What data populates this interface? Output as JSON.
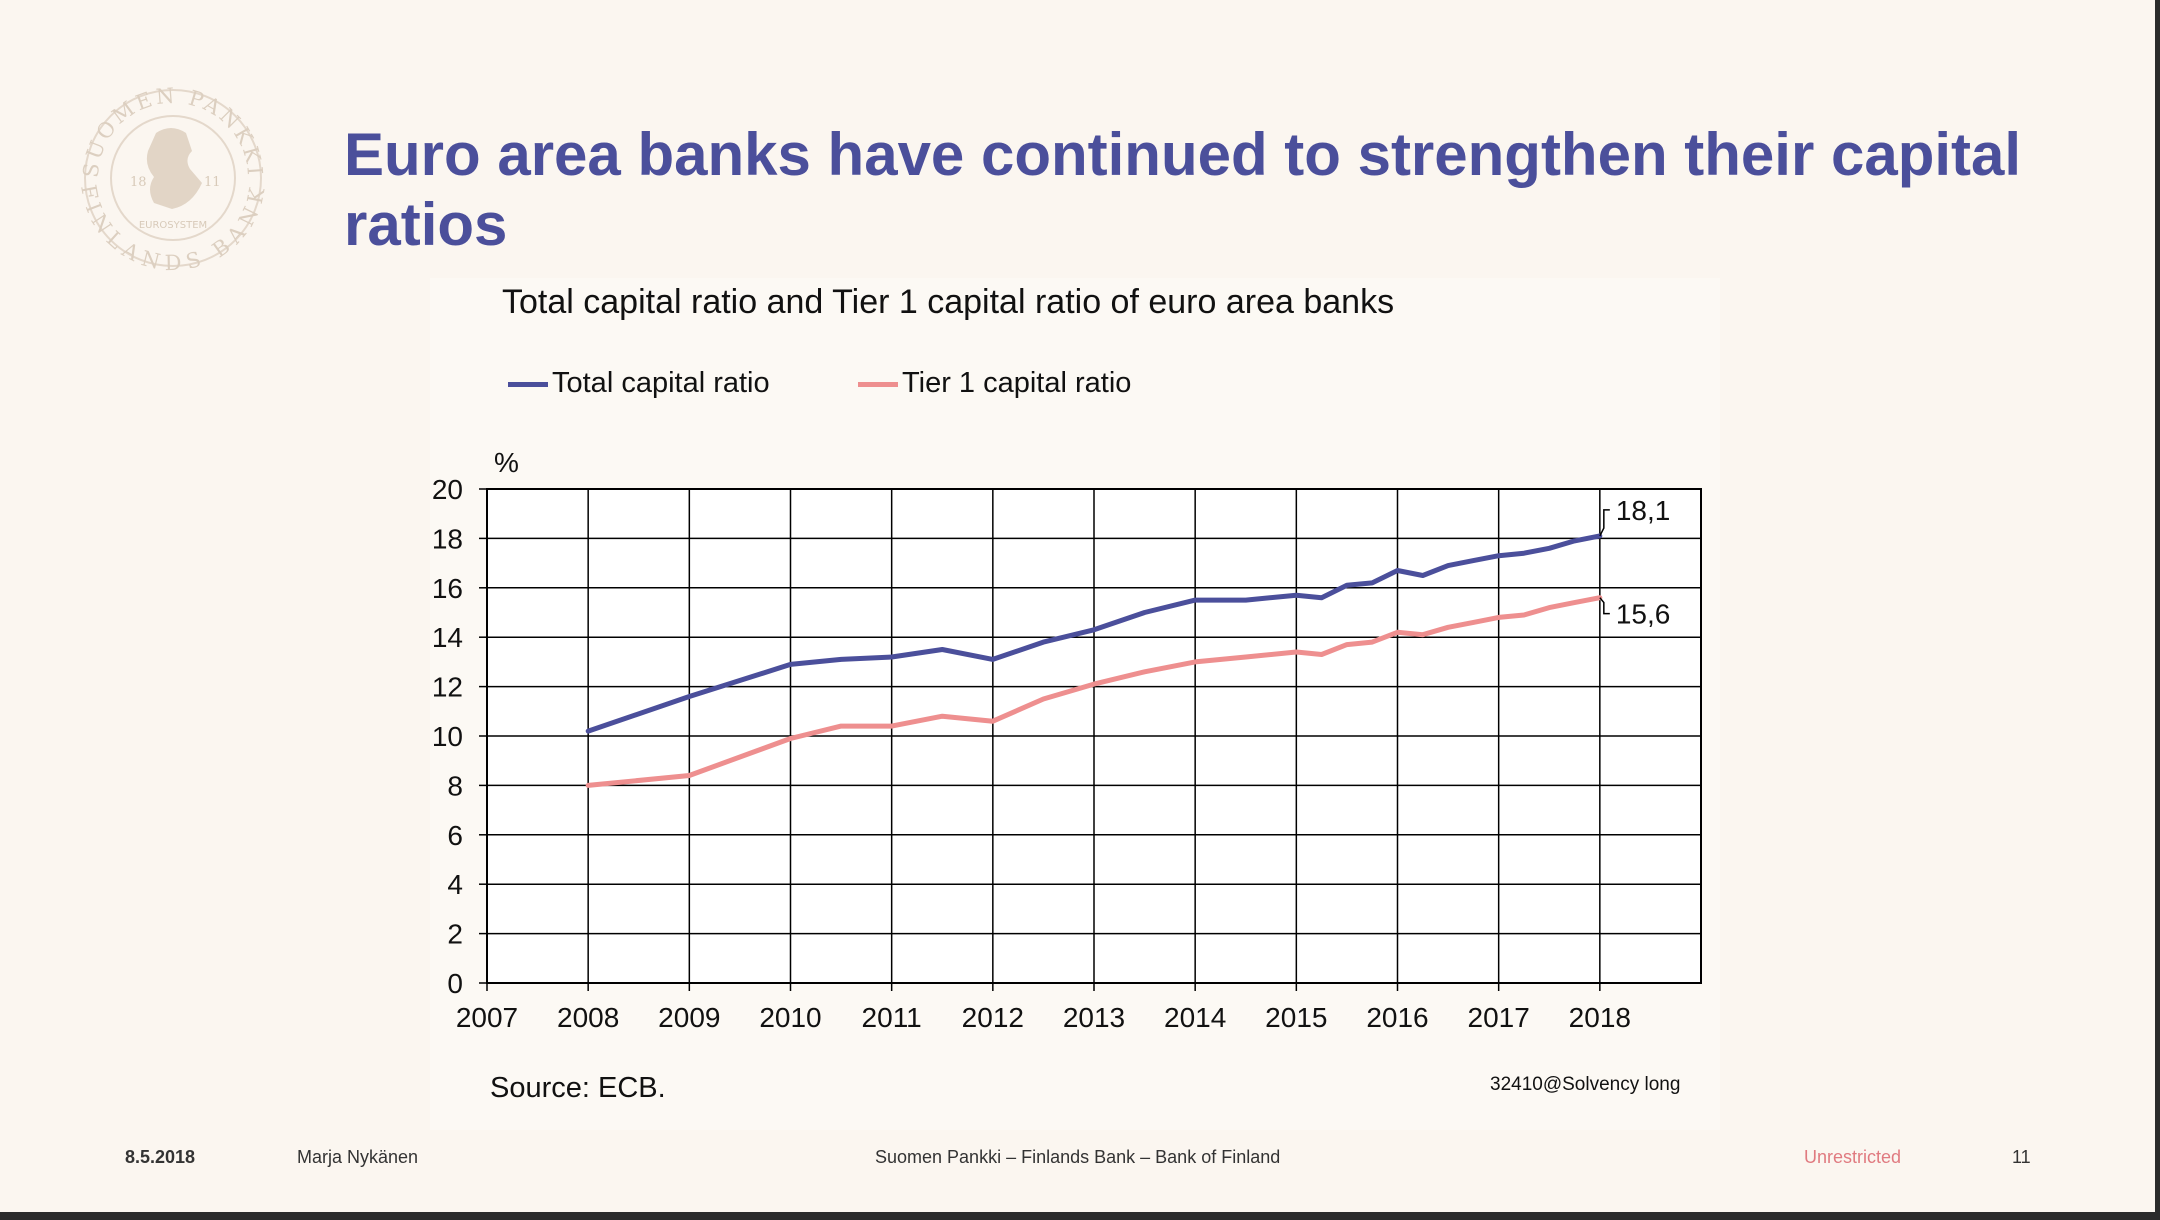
{
  "headline": "Euro area banks have continued to strengthen their capital ratios",
  "logo": {
    "icon": "bank-of-finland-seal-icon",
    "ring_top": "SUOMEN PANKKI",
    "ring_bottom": "FINLANDS BANK",
    "inner": "EUROSYSTEM",
    "year_left": "18",
    "year_right": "11"
  },
  "chart_data": {
    "type": "line",
    "title": "Total capital ratio and Tier 1 capital ratio of euro area banks",
    "ylabel": "%",
    "xlabel": "",
    "ylim": [
      0,
      20
    ],
    "yticks": [
      0,
      2,
      4,
      6,
      8,
      10,
      12,
      14,
      16,
      18,
      20
    ],
    "xlim": [
      2007,
      2019
    ],
    "xticks": [
      "2007",
      "2008",
      "2009",
      "2010",
      "2011",
      "2012",
      "2013",
      "2014",
      "2015",
      "2016",
      "2017",
      "2018"
    ],
    "grid": true,
    "legend_position": "top",
    "series": [
      {
        "name": "Total capital ratio",
        "color": "#4b4f9b",
        "x": [
          2008,
          2009,
          2010,
          2010.5,
          2011,
          2011.5,
          2012,
          2012.5,
          2013,
          2013.5,
          2014,
          2014.5,
          2015,
          2015.25,
          2015.5,
          2015.75,
          2016,
          2016.25,
          2016.5,
          2016.75,
          2017,
          2017.25,
          2017.5,
          2017.75,
          2018
        ],
        "values": [
          10.2,
          11.6,
          12.9,
          13.1,
          13.2,
          13.5,
          13.1,
          13.8,
          14.3,
          15.0,
          15.5,
          15.5,
          15.7,
          15.6,
          16.1,
          16.2,
          16.7,
          16.5,
          16.9,
          17.1,
          17.3,
          17.4,
          17.6,
          17.9,
          18.1
        ],
        "end_label": "18,1"
      },
      {
        "name": "Tier 1 capital ratio",
        "color": "#ee8f8f",
        "x": [
          2008,
          2009,
          2010,
          2010.5,
          2011,
          2011.5,
          2012,
          2012.5,
          2013,
          2013.5,
          2014,
          2014.5,
          2015,
          2015.25,
          2015.5,
          2015.75,
          2016,
          2016.25,
          2016.5,
          2016.75,
          2017,
          2017.25,
          2017.5,
          2017.75,
          2018
        ],
        "values": [
          8.0,
          8.4,
          9.9,
          10.4,
          10.4,
          10.8,
          10.6,
          11.5,
          12.1,
          12.6,
          13.0,
          13.2,
          13.4,
          13.3,
          13.7,
          13.8,
          14.2,
          14.1,
          14.4,
          14.6,
          14.8,
          14.9,
          15.2,
          15.4,
          15.6
        ],
        "end_label": "15,6"
      }
    ],
    "source": "Source: ECB.",
    "code": "32410@Solvency long"
  },
  "footer": {
    "date": "8.5.2018",
    "author": "Marja Nykänen",
    "organization": "Suomen Pankki – Finlands Bank – Bank of Finland",
    "classification": "Unrestricted",
    "page": "11"
  },
  "colors": {
    "headline": "#4b4f9b",
    "background": "#fbf6f0",
    "classification": "#e07a80"
  }
}
